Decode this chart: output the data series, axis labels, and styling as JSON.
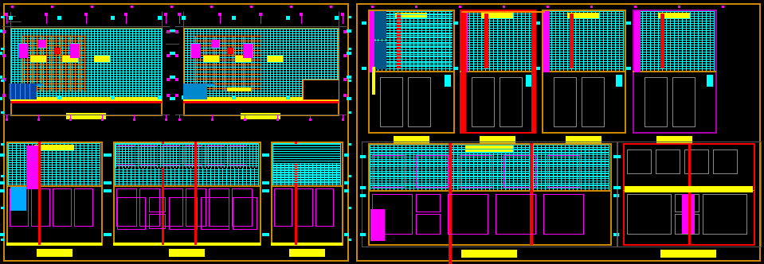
{
  "bg": "#000000",
  "gold": "#cc8800",
  "cyan": "#00ffff",
  "yellow": "#ffff00",
  "magenta": "#ff00ff",
  "red": "#ff0000",
  "orange": "#ff8800",
  "gray": "#888888",
  "white": "#ffffff",
  "darkgray": "#555555",
  "fig_w": 9.59,
  "fig_h": 3.32,
  "dpi": 100
}
